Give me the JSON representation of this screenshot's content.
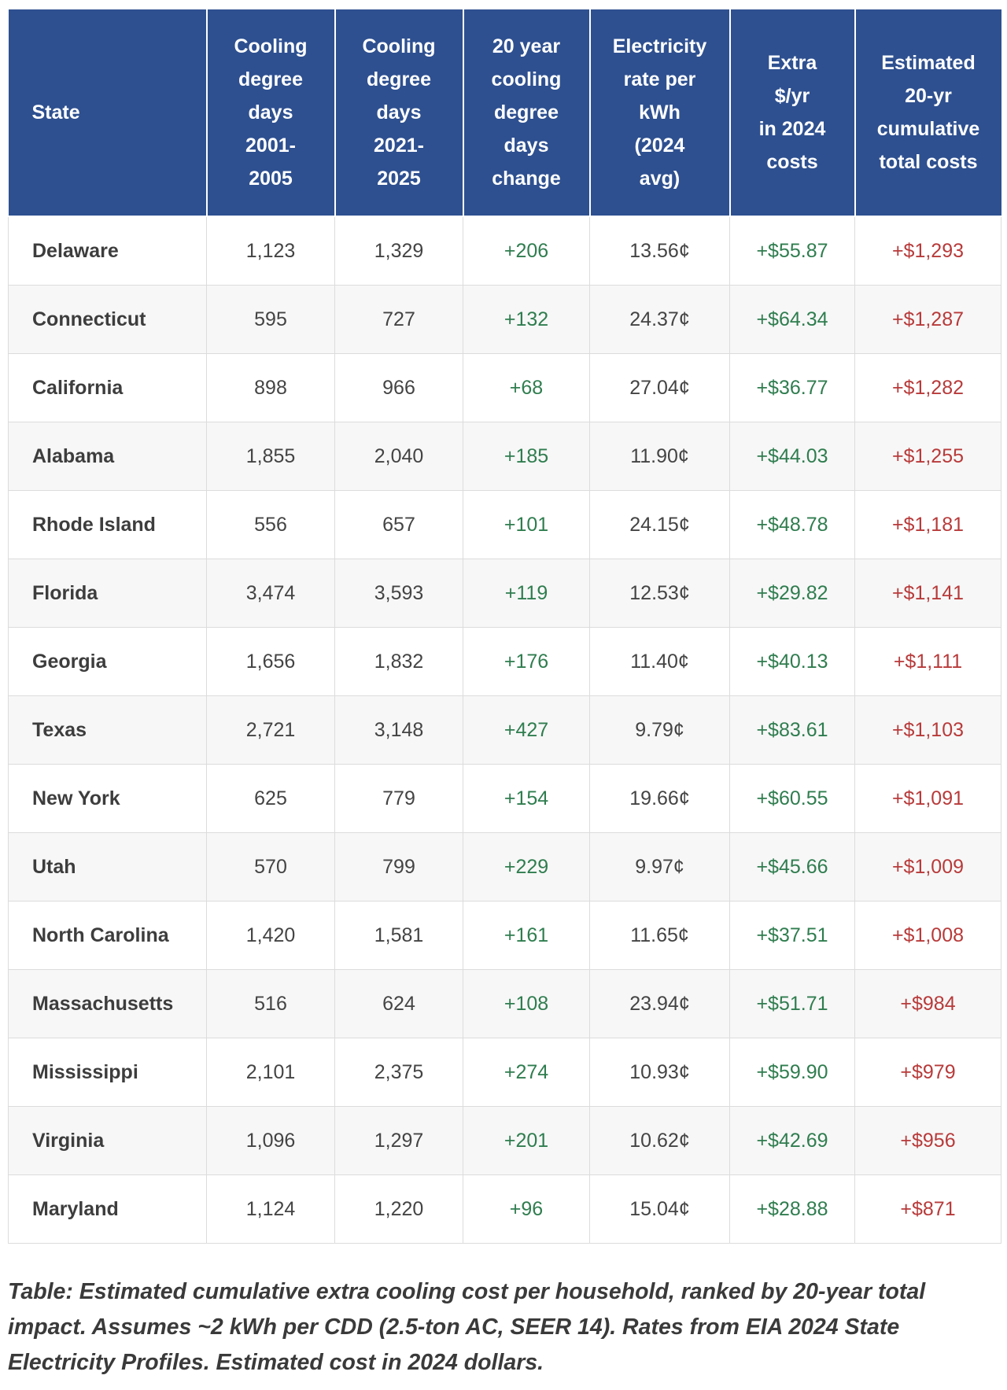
{
  "table": {
    "headers": [
      "State",
      "Cooling\ndegree\ndays\n2001-\n2005",
      "Cooling\ndegree\ndays\n2021-\n2025",
      "20 year\ncooling\ndegree\ndays\nchange",
      "Electricity\nrate per\nkWh\n(2024\navg)",
      "Extra\n$/yr\nin 2024\ncosts",
      "Estimated\n20-yr\ncumulative\ntotal costs"
    ],
    "rows": [
      [
        "Delaware",
        "1,123",
        "1,329",
        "+206",
        "13.56¢",
        "+$55.87",
        "+$1,293"
      ],
      [
        "Connecticut",
        "595",
        "727",
        "+132",
        "24.37¢",
        "+$64.34",
        "+$1,287"
      ],
      [
        "California",
        "898",
        "966",
        "+68",
        "27.04¢",
        "+$36.77",
        "+$1,282"
      ],
      [
        "Alabama",
        "1,855",
        "2,040",
        "+185",
        "11.90¢",
        "+$44.03",
        "+$1,255"
      ],
      [
        "Rhode Island",
        "556",
        "657",
        "+101",
        "24.15¢",
        "+$48.78",
        "+$1,181"
      ],
      [
        "Florida",
        "3,474",
        "3,593",
        "+119",
        "12.53¢",
        "+$29.82",
        "+$1,141"
      ],
      [
        "Georgia",
        "1,656",
        "1,832",
        "+176",
        "11.40¢",
        "+$40.13",
        "+$1,111"
      ],
      [
        "Texas",
        "2,721",
        "3,148",
        "+427",
        "9.79¢",
        "+$83.61",
        "+$1,103"
      ],
      [
        "New York",
        "625",
        "779",
        "+154",
        "19.66¢",
        "+$60.55",
        "+$1,091"
      ],
      [
        "Utah",
        "570",
        "799",
        "+229",
        "9.97¢",
        "+$45.66",
        "+$1,009"
      ],
      [
        "North Carolina",
        "1,420",
        "1,581",
        "+161",
        "11.65¢",
        "+$37.51",
        "+$1,008"
      ],
      [
        "Massachusetts",
        "516",
        "624",
        "+108",
        "23.94¢",
        "+$51.71",
        "+$984"
      ],
      [
        "Mississippi",
        "2,101",
        "2,375",
        "+274",
        "10.93¢",
        "+$59.90",
        "+$979"
      ],
      [
        "Virginia",
        "1,096",
        "1,297",
        "+201",
        "10.62¢",
        "+$42.69",
        "+$956"
      ],
      [
        "Maryland",
        "1,124",
        "1,220",
        "+96",
        "15.04¢",
        "+$28.88",
        "+$871"
      ]
    ]
  },
  "caption": "Table: Estimated cumulative extra cooling cost per household, ranked by 20-year total impact. Assumes ~2 kWh per CDD (2.5-ton AC, SEER 14). Rates from EIA 2024 State Electricity Profiles. Estimated cost in 2024 dollars.",
  "colors": {
    "header_bg": "#2e5090",
    "positive_green": "#2f7d4f",
    "cumulative_red": "#b83a3a"
  }
}
